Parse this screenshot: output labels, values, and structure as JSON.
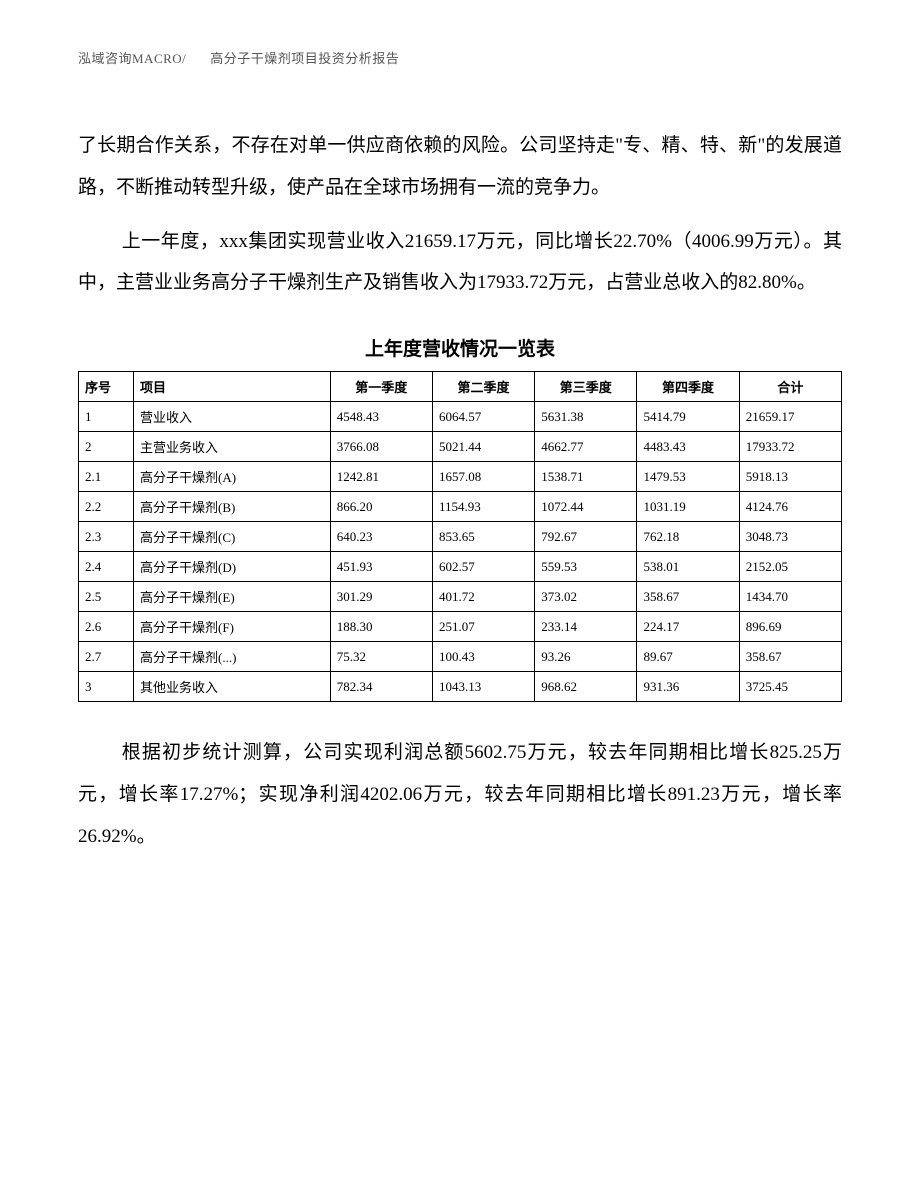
{
  "header": {
    "left": "泓域咨询MACRO/",
    "right": "高分子干燥剂项目投资分析报告"
  },
  "paragraphs": {
    "p1": "了长期合作关系，不存在对单一供应商依赖的风险。公司坚持走\"专、精、特、新\"的发展道路，不断推动转型升级，使产品在全球市场拥有一流的竞争力。",
    "p2": "上一年度，xxx集团实现营业收入21659.17万元，同比增长22.70%（4006.99万元）。其中，主营业业务高分子干燥剂生产及销售收入为17933.72万元，占营业总收入的82.80%。",
    "p3": "根据初步统计测算，公司实现利润总额5602.75万元，较去年同期相比增长825.25万元，增长率17.27%；实现净利润4202.06万元，较去年同期相比增长891.23万元，增长率26.92%。"
  },
  "table": {
    "title": "上年度营收情况一览表",
    "columns": [
      "序号",
      "项目",
      "第一季度",
      "第二季度",
      "第三季度",
      "第四季度",
      "合计"
    ],
    "rows": [
      [
        "1",
        "营业收入",
        "4548.43",
        "6064.57",
        "5631.38",
        "5414.79",
        "21659.17"
      ],
      [
        "2",
        "主营业务收入",
        "3766.08",
        "5021.44",
        "4662.77",
        "4483.43",
        "17933.72"
      ],
      [
        "2.1",
        "高分子干燥剂(A)",
        "1242.81",
        "1657.08",
        "1538.71",
        "1479.53",
        "5918.13"
      ],
      [
        "2.2",
        "高分子干燥剂(B)",
        "866.20",
        "1154.93",
        "1072.44",
        "1031.19",
        "4124.76"
      ],
      [
        "2.3",
        "高分子干燥剂(C)",
        "640.23",
        "853.65",
        "792.67",
        "762.18",
        "3048.73"
      ],
      [
        "2.4",
        "高分子干燥剂(D)",
        "451.93",
        "602.57",
        "559.53",
        "538.01",
        "2152.05"
      ],
      [
        "2.5",
        "高分子干燥剂(E)",
        "301.29",
        "401.72",
        "373.02",
        "358.67",
        "1434.70"
      ],
      [
        "2.6",
        "高分子干燥剂(F)",
        "188.30",
        "251.07",
        "233.14",
        "224.17",
        "896.69"
      ],
      [
        "2.7",
        "高分子干燥剂(...)",
        "75.32",
        "100.43",
        "93.26",
        "89.67",
        "358.67"
      ],
      [
        "3",
        "其他业务收入",
        "782.34",
        "1043.13",
        "968.62",
        "931.36",
        "3725.45"
      ]
    ]
  }
}
